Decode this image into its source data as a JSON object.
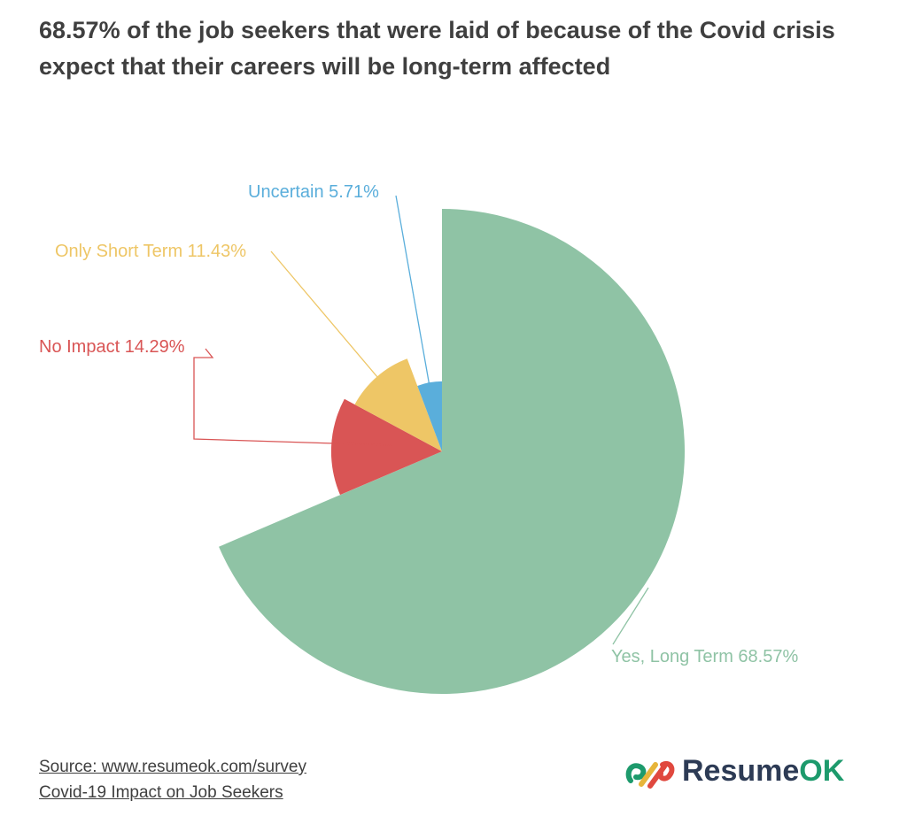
{
  "title": "68.57% of the job seekers that were laid of because of the Covid crisis expect that their careers will be long-term affected",
  "chart_data": {
    "type": "pie",
    "title": "68.57% of the job seekers that were laid of because of the Covid crisis expect that their careers will be long-term affected",
    "legend": "none",
    "slices": [
      {
        "name": "Yes, Long Term",
        "value": 68.57,
        "label": "Yes, Long Term 68.57%",
        "color": "#8fc3a5"
      },
      {
        "name": "No Impact",
        "value": 14.29,
        "label": "No Impact 14.29%",
        "color": "#d95555"
      },
      {
        "name": "Only Short Term",
        "value": 11.43,
        "label": "Only Short Term 11.43%",
        "color": "#eec666"
      },
      {
        "name": "Uncertain",
        "value": 5.71,
        "label": "Uncertain 5.71%",
        "color": "#5aaedb"
      }
    ]
  },
  "footer": {
    "source": "Source: www.resumeok.com/survey",
    "subtitle": "Covid-19 Impact on Job Seekers"
  },
  "brand": {
    "name_part1": "Resume",
    "name_part2": "OK",
    "logo_icon": "resumeok-logo-icon"
  }
}
